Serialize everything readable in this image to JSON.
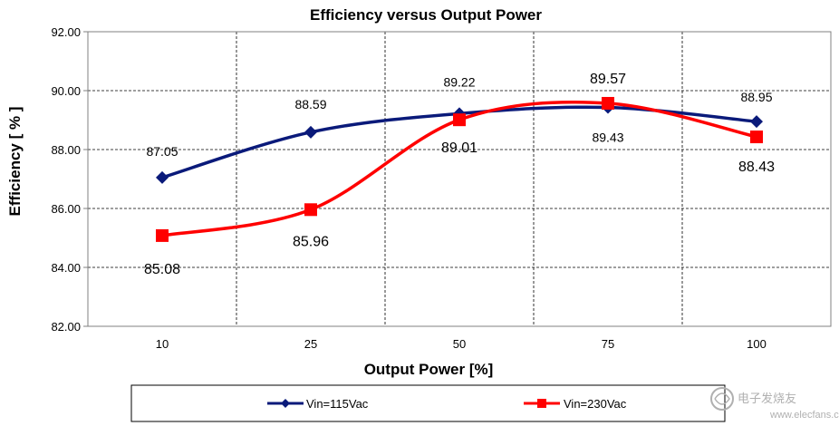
{
  "chart_data": {
    "type": "line",
    "title": "Efficiency versus Output Power",
    "xlabel": "Output Power [%]",
    "ylabel": "Efficiency [ % ]",
    "categories": [
      "10",
      "25",
      "50",
      "75",
      "100"
    ],
    "ylim": [
      82,
      92
    ],
    "yticks": [
      "82.00",
      "84.00",
      "86.00",
      "88.00",
      "90.00",
      "92.00"
    ],
    "grid": true,
    "legend_position": "bottom",
    "series": [
      {
        "name": "Vin=115Vac",
        "color": "#0a1a7a",
        "marker": "diamond",
        "values": [
          87.05,
          88.59,
          89.22,
          89.43,
          88.95
        ],
        "labels": [
          "87.05",
          "88.59",
          "89.22",
          "89.43",
          "88.95"
        ]
      },
      {
        "name": "Vin=230Vac",
        "color": "#ff0000",
        "marker": "square",
        "values": [
          85.08,
          85.96,
          89.01,
          89.57,
          88.43
        ],
        "labels": [
          "85.08",
          "85.96",
          "89.01",
          "89.57",
          "88.43"
        ]
      }
    ]
  },
  "watermark": {
    "line1": "电子发烧友",
    "line2": "www.elecfans.com"
  }
}
